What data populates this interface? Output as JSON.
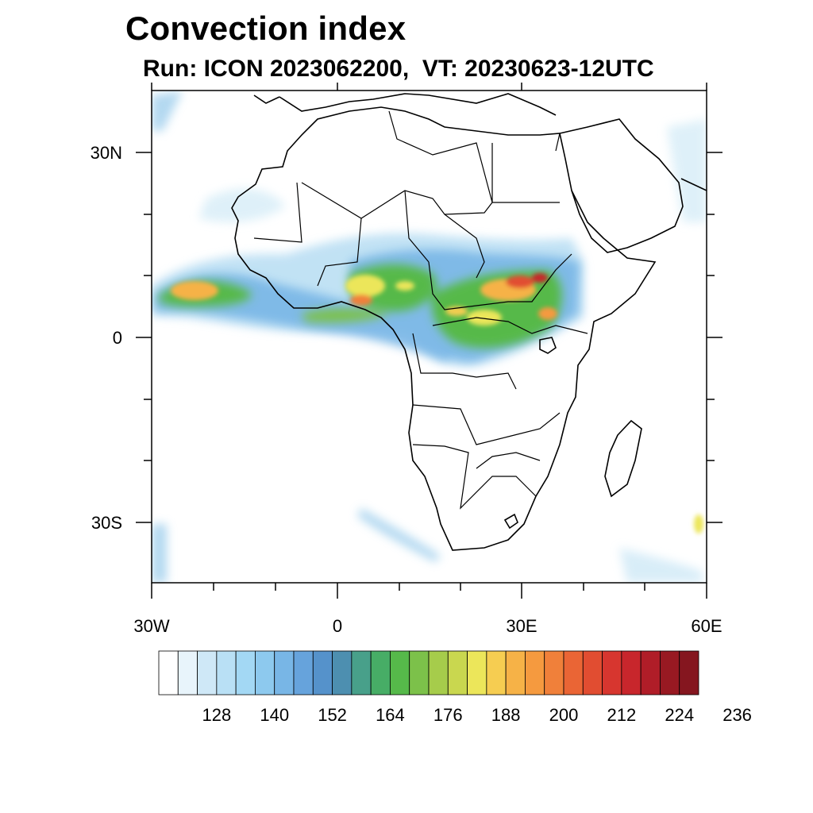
{
  "title": "Convection index",
  "subtitle": "Run: ICON 2023062200,  VT: 20230623-12UTC",
  "axes": {
    "lat_labels": [
      "30N",
      "0",
      "30S"
    ],
    "lon_labels": [
      "30W",
      "0",
      "30E",
      "60E"
    ],
    "lon_range": [
      -30,
      60
    ],
    "lat_range": [
      -40,
      40
    ]
  },
  "colorbar": {
    "labels": [
      "128",
      "140",
      "152",
      "164",
      "176",
      "188",
      "200",
      "212",
      "224",
      "236"
    ],
    "colors": [
      "#ffffff",
      "#e8f4fb",
      "#cfe8f7",
      "#b9e0f5",
      "#a3d8f4",
      "#8dc9ee",
      "#78b6e6",
      "#66a3dc",
      "#5592cb",
      "#4d8fb0",
      "#48a08a",
      "#47ad66",
      "#56b94a",
      "#7cc14a",
      "#a6cc4b",
      "#c9d74f",
      "#ece65a",
      "#f6cd51",
      "#f6b247",
      "#f59a3f",
      "#f0803a",
      "#ea6535",
      "#e14d31",
      "#d7362f",
      "#c8262c",
      "#b01d28",
      "#981922",
      "#85161f"
    ]
  }
}
